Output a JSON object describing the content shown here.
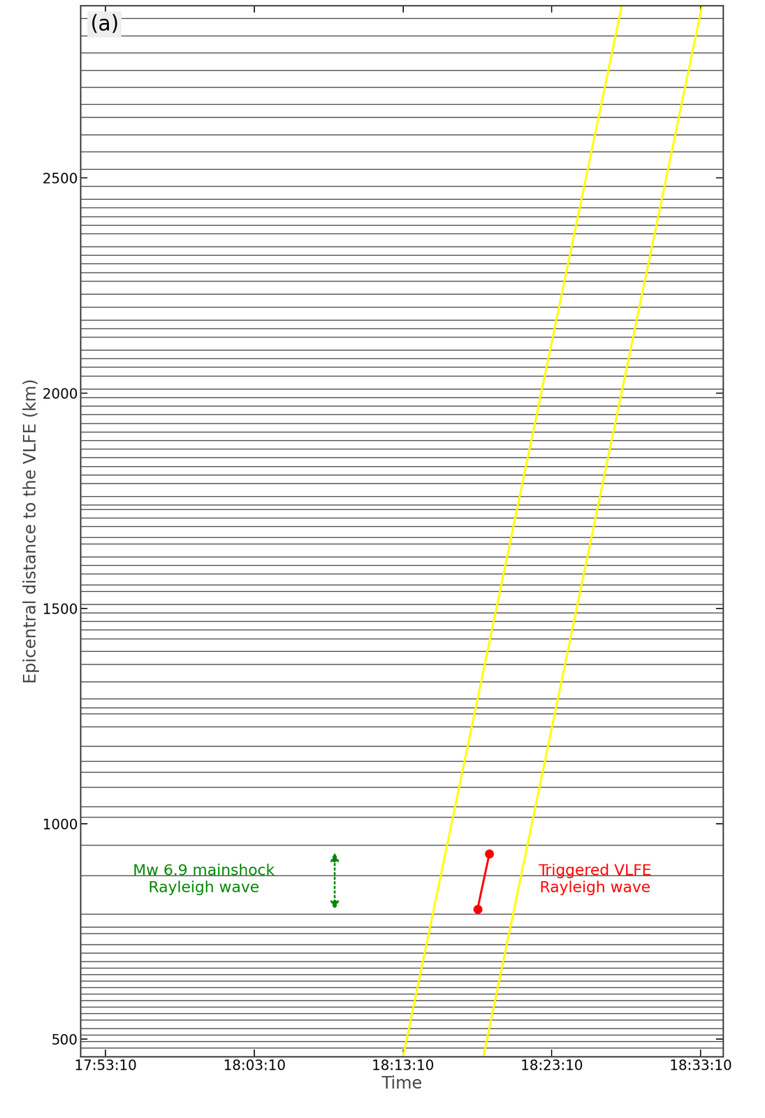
{
  "chart_data": {
    "type": "record_section",
    "panel_label": "(a)",
    "x_label": "Time",
    "y_label": "Epicentral distance to the VLFE (km)",
    "xlim": [
      -1.7,
      41.5
    ],
    "ylim": [
      460,
      2900
    ],
    "xticks": [
      {
        "value": 0,
        "label": "17:53:10"
      },
      {
        "value": 10,
        "label": "18:03:10"
      },
      {
        "value": 20,
        "label": "18:13:10"
      },
      {
        "value": 30,
        "label": "18:23:10"
      },
      {
        "value": 40,
        "label": "18:33:10"
      }
    ],
    "yticks": [
      500,
      1000,
      1500,
      2000,
      2500
    ],
    "trace_color": "#404040",
    "trace_distances": [
      480,
      495,
      510,
      525,
      545,
      560,
      575,
      590,
      605,
      620,
      635,
      650,
      665,
      680,
      700,
      720,
      745,
      760,
      790,
      880,
      950,
      1015,
      1040,
      1085,
      1120,
      1145,
      1180,
      1225,
      1255,
      1270,
      1290,
      1330,
      1370,
      1400,
      1430,
      1450,
      1470,
      1490,
      1510,
      1540,
      1555,
      1580,
      1600,
      1620,
      1650,
      1665,
      1690,
      1710,
      1730,
      1740,
      1760,
      1790,
      1810,
      1830,
      1850,
      1870,
      1890,
      1910,
      1930,
      1950,
      1970,
      1990,
      2010,
      2040,
      2060,
      2080,
      2100,
      2130,
      2150,
      2170,
      2200,
      2230,
      2260,
      2280,
      2300,
      2320,
      2340,
      2370,
      2390,
      2410,
      2430,
      2450,
      2480,
      2520,
      2560,
      2600,
      2640,
      2670,
      2710,
      2750,
      2790,
      2830,
      2870
    ],
    "series": [
      {
        "type": "line",
        "color": "#ffff00",
        "x": [
          20.0,
          34.7
        ],
        "y": [
          460,
          2900
        ]
      },
      {
        "type": "line",
        "color": "#ffff00",
        "x": [
          25.4,
          40.1
        ],
        "y": [
          460,
          2900
        ]
      },
      {
        "type": "arrow",
        "color": "#008800",
        "line_style": "dotted",
        "x": [
          15.4,
          15.4
        ],
        "y": [
          937,
          797
        ]
      },
      {
        "type": "line",
        "color": "#ff0000",
        "marker": "o",
        "x": [
          25.0,
          25.8
        ],
        "y": [
          802,
          931
        ]
      }
    ],
    "annotations": [
      {
        "text": "Mw 6.9 mainshock\nRayleigh wave",
        "x": 6.6,
        "y": 871,
        "color": "#008800"
      },
      {
        "text": "Triggered VLFE\nRayleigh wave",
        "x": 32.9,
        "y": 871,
        "color": "#ff0000"
      }
    ]
  }
}
